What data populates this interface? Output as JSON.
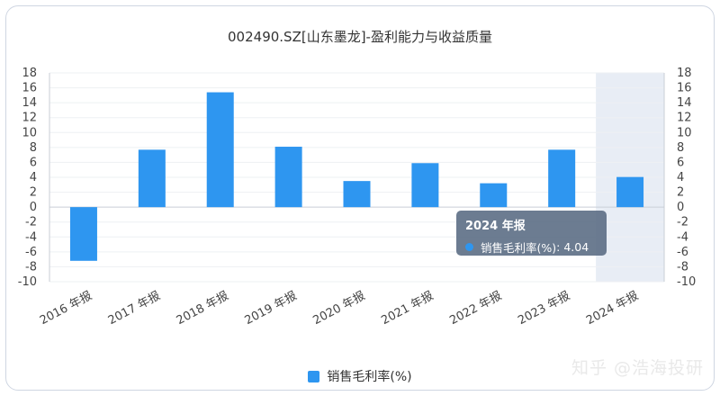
{
  "chart_data": {
    "type": "bar",
    "title": "002490.SZ[山东墨龙]-盈利能力与收益质量",
    "categories": [
      "2016 年报",
      "2017 年报",
      "2018 年报",
      "2019 年报",
      "2020 年报",
      "2021 年报",
      "2022 年报",
      "2023 年报",
      "2024 年报"
    ],
    "series": [
      {
        "name": "销售毛利率(%)",
        "color": "#2e96f0",
        "values": [
          -7.2,
          7.7,
          15.4,
          8.1,
          3.5,
          5.9,
          3.2,
          7.7,
          4.04
        ]
      }
    ],
    "ylim": [
      -10,
      18
    ],
    "y_ticks": [
      18,
      16,
      14,
      12,
      10,
      8,
      6,
      4,
      2,
      0,
      -2,
      -4,
      -6,
      -8,
      -10
    ],
    "dual_y_axis": true,
    "grid": true,
    "legend_position": "bottom",
    "highlight_category": "2024 年报",
    "highlight_color": "#e8edf5"
  },
  "tooltip": {
    "title": "2024 年报",
    "series_name": "销售毛利率(%)",
    "value": "4.04"
  },
  "watermark": "知乎 @浩海投研"
}
